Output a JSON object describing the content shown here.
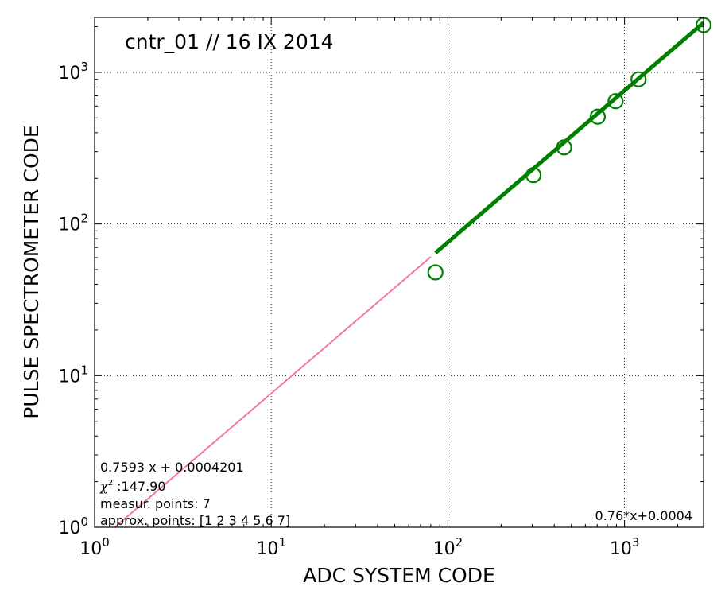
{
  "chart_data": {
    "type": "scatter",
    "title": "cntr_01 // 16 IX 2014",
    "xlabel": "ADC  SYSTEM  CODE",
    "ylabel": "PULSE  SPECTROMETER  CODE",
    "xscale": "log",
    "yscale": "log",
    "xlim": [
      1,
      2800
    ],
    "ylim": [
      1,
      2300
    ],
    "x_ticks": [
      {
        "base": "10",
        "exp": "0",
        "value": 1
      },
      {
        "base": "10",
        "exp": "1",
        "value": 10
      },
      {
        "base": "10",
        "exp": "2",
        "value": 100
      },
      {
        "base": "10",
        "exp": "3",
        "value": 1000
      }
    ],
    "y_ticks": [
      {
        "base": "10",
        "exp": "0",
        "value": 1
      },
      {
        "base": "10",
        "exp": "1",
        "value": 10
      },
      {
        "base": "10",
        "exp": "2",
        "value": 100
      },
      {
        "base": "10",
        "exp": "3",
        "value": 1000
      }
    ],
    "grid": true,
    "series": [
      {
        "kind": "scatter",
        "marker": "open-circle",
        "color": "#008000",
        "x": [
          85,
          305,
          455,
          705,
          890,
          1200,
          2800
        ],
        "y": [
          48,
          210,
          320,
          510,
          645,
          900,
          2050
        ]
      },
      {
        "kind": "line",
        "style": "fit-thick",
        "color": "#008000",
        "x": [
          85,
          2800
        ],
        "y": [
          64.5,
          2126
        ]
      },
      {
        "kind": "line",
        "style": "fit-extrapolation",
        "color": "#f4789f",
        "x": [
          1.3,
          80
        ],
        "y": [
          1.0,
          60.7
        ]
      }
    ],
    "annotations": {
      "fit_equation": "0.7593 x + 0.0004201",
      "chi_symbol": "χ",
      "chi_exp": "2",
      "chi_value": " :147.90",
      "measur_points": "measur. points: 7",
      "approx_points": "approx. points: [1 2 3 4 5 6 7]",
      "fit_short": "0.76*x+0.0004"
    }
  }
}
